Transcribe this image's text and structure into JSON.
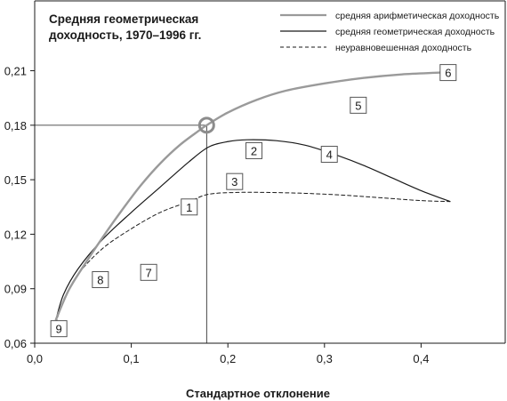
{
  "chart_data": {
    "type": "line",
    "title": [
      "Средняя геометрическая",
      "доходность, 1970–1996 гг."
    ],
    "xlabel": "Стандартное отклонение",
    "ylabel": "",
    "xlim": [
      0,
      0.5
    ],
    "ylim": [
      0.06,
      0.235
    ],
    "x_ticks": [
      "0,0",
      "0,1",
      "0,2",
      "0,3",
      "0,4"
    ],
    "x_tick_values": [
      0,
      0.1,
      0.2,
      0.3,
      0.4
    ],
    "y_ticks": [
      "0,06",
      "0,09",
      "0,12",
      "0,15",
      "0,18",
      "0,21"
    ],
    "y_tick_values": [
      0.06,
      0.09,
      0.12,
      0.15,
      0.18,
      0.21
    ],
    "grid": false,
    "legend_position": "top-right",
    "series": [
      {
        "name": "средняя арифметическая доходность",
        "color": "#9a9a9a",
        "style": "solid",
        "x": [
          0.022,
          0.035,
          0.05,
          0.07,
          0.09,
          0.11,
          0.13,
          0.15,
          0.17,
          0.178,
          0.2,
          0.23,
          0.26,
          0.3,
          0.34,
          0.38,
          0.42,
          0.43
        ],
        "y": [
          0.073,
          0.089,
          0.102,
          0.118,
          0.133,
          0.147,
          0.159,
          0.169,
          0.177,
          0.18,
          0.187,
          0.194,
          0.199,
          0.203,
          0.206,
          0.208,
          0.209,
          0.2095
        ]
      },
      {
        "name": "средняя геометрическая доходность",
        "color": "#1a1a1a",
        "style": "solid",
        "x": [
          0.022,
          0.03,
          0.045,
          0.07,
          0.1,
          0.13,
          0.16,
          0.18,
          0.2,
          0.22,
          0.25,
          0.28,
          0.31,
          0.34,
          0.37,
          0.4,
          0.43
        ],
        "y": [
          0.073,
          0.087,
          0.101,
          0.117,
          0.132,
          0.146,
          0.16,
          0.168,
          0.171,
          0.172,
          0.1715,
          0.169,
          0.164,
          0.158,
          0.151,
          0.144,
          0.138
        ]
      },
      {
        "name": "неуравновешенная доходность",
        "color": "#1a1a1a",
        "style": "dashed",
        "x": [
          0.022,
          0.03,
          0.045,
          0.07,
          0.1,
          0.13,
          0.16,
          0.18,
          0.21,
          0.24,
          0.28,
          0.32,
          0.36,
          0.4,
          0.43
        ],
        "y": [
          0.071,
          0.084,
          0.098,
          0.112,
          0.123,
          0.132,
          0.138,
          0.142,
          0.143,
          0.143,
          0.1425,
          0.1415,
          0.14,
          0.1385,
          0.138
        ]
      }
    ],
    "reference_point": {
      "x": 0.178,
      "y": 0.18
    },
    "annotations": [
      {
        "label": "1",
        "x": 0.16,
        "y": 0.135
      },
      {
        "label": "2",
        "x": 0.227,
        "y": 0.166
      },
      {
        "label": "3",
        "x": 0.207,
        "y": 0.149
      },
      {
        "label": "4",
        "x": 0.305,
        "y": 0.164
      },
      {
        "label": "5",
        "x": 0.335,
        "y": 0.191
      },
      {
        "label": "6",
        "x": 0.428,
        "y": 0.209
      },
      {
        "label": "7",
        "x": 0.118,
        "y": 0.099
      },
      {
        "label": "8",
        "x": 0.068,
        "y": 0.095
      },
      {
        "label": "9",
        "x": 0.025,
        "y": 0.068
      }
    ]
  }
}
